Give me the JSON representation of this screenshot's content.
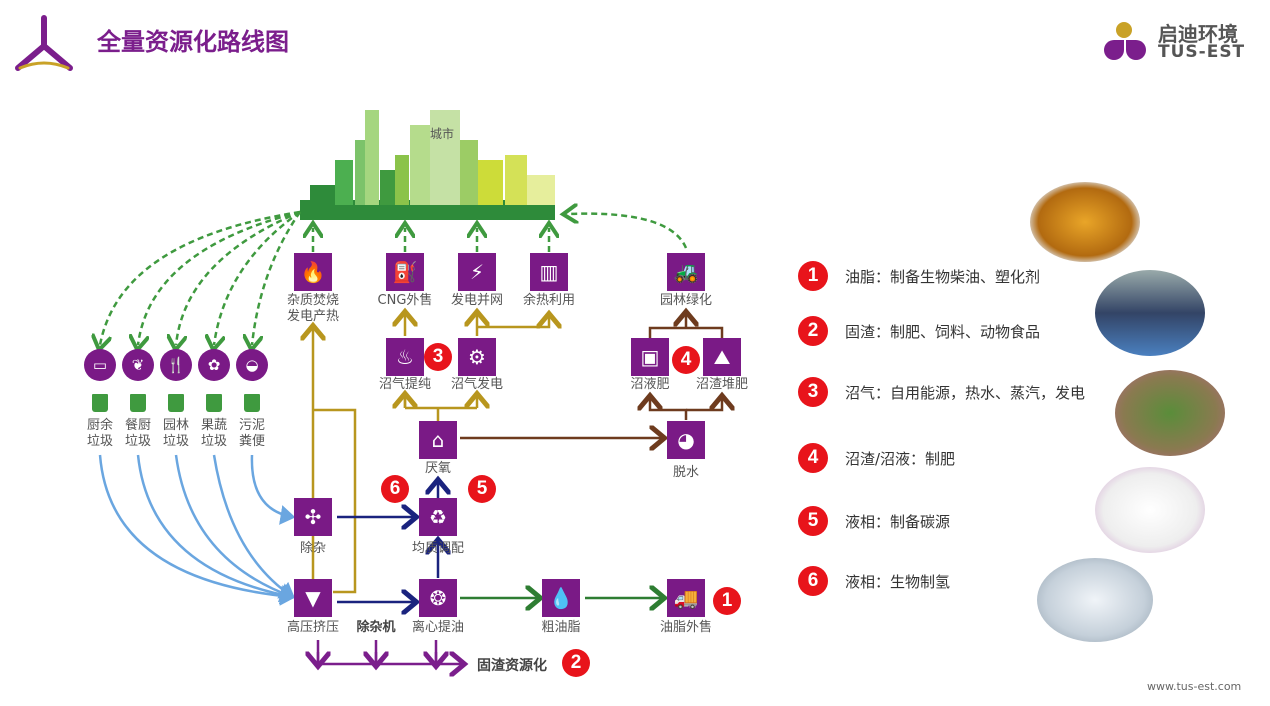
{
  "header": {
    "title": "全量资源化路线图",
    "brand_cn": "启迪环境",
    "brand_en": "TUS-EST"
  },
  "city": {
    "label": "城市"
  },
  "sources": [
    {
      "l1": "厨余",
      "l2": "垃圾"
    },
    {
      "l1": "餐厨",
      "l2": "垃圾"
    },
    {
      "l1": "园林",
      "l2": "垃圾"
    },
    {
      "l1": "果蔬",
      "l2": "垃圾"
    },
    {
      "l1": "污泥",
      "l2": "粪便"
    }
  ],
  "nodes": {
    "incineration_1": "杂质焚烧",
    "incineration_2": "发电产热",
    "cng": "CNG外售",
    "grid": "发电并网",
    "heat": "余热利用",
    "greening": "园林绿化",
    "purify": "沼气提纯",
    "biogas_power": "沼气发电",
    "liquid_fert": "沼液肥",
    "compost": "沼渣堆肥",
    "anaerobic": "厌氧",
    "dewater": "脱水",
    "impurity": "除杂",
    "homogenize": "均质调配",
    "press": "高压挤压",
    "impurity_machine": "除杂机",
    "centrifuge": "离心提油",
    "crude_oil": "粗油脂",
    "oil_sale": "油脂外售",
    "solid": "固渣资源化"
  },
  "badges": [
    "1",
    "2",
    "3",
    "4",
    "5",
    "6"
  ],
  "legend": [
    {
      "num": "1",
      "text": "油脂：制备生物柴油、塑化剂"
    },
    {
      "num": "2",
      "text": "固渣：制肥、饲料、动物食品"
    },
    {
      "num": "3",
      "text": "沼气：自用能源，热水、蒸汽，发电"
    },
    {
      "num": "4",
      "text": "沼渣/沼液：制肥"
    },
    {
      "num": "5",
      "text": "液相：制备碳源"
    },
    {
      "num": "6",
      "text": "液相：生物制氢"
    }
  ],
  "footer": {
    "url": "www.tus-est.com"
  },
  "colors": {
    "brand": "#7b1e8c",
    "badge": "#e8141b",
    "green": "#3f9a3f",
    "blue": "#6aa6e0",
    "gold": "#b8961e",
    "brown": "#6e3b1e",
    "navy": "#1a237e"
  }
}
